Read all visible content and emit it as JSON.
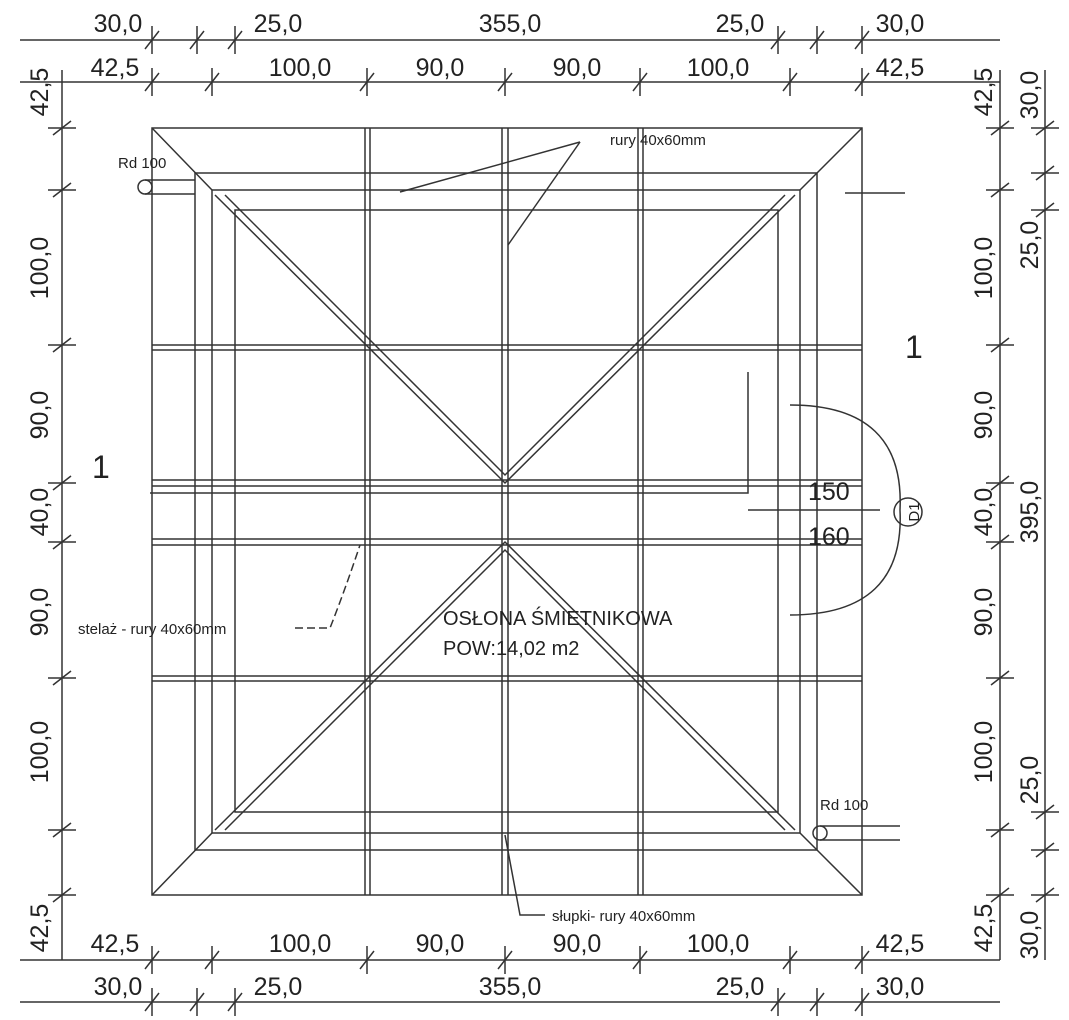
{
  "dimensions": {
    "top_outer": [
      "30,0",
      "25,0",
      "355,0",
      "25,0",
      "30,0"
    ],
    "top_inner": [
      "42,5",
      "100,0",
      "90,0",
      "90,0",
      "100,0",
      "42,5"
    ],
    "bottom_inner": [
      "42,5",
      "100,0",
      "90,0",
      "90,0",
      "100,0",
      "42,5"
    ],
    "bottom_outer": [
      "30,0",
      "25,0",
      "355,0",
      "25,0",
      "30,0"
    ],
    "left": [
      "42,5",
      "100,0",
      "90,0",
      "40,0",
      "90,0",
      "100,0",
      "42,5"
    ],
    "right_inner": [
      "42,5",
      "100,0",
      "90,0",
      "40,0",
      "90,0",
      "100,0",
      "42,5"
    ],
    "right_outer": [
      "30,0",
      "25,0",
      "395,0",
      "25,0",
      "30,0"
    ]
  },
  "labels": {
    "pipes_top": "rury 40x60mm",
    "rd_top": "Rd 100",
    "rd_bottom": "Rd 100",
    "section_right": "1",
    "section_left": "1",
    "h150": "150",
    "h160": "160",
    "door": "D1",
    "frame": "stelaż - rury 40x60mm",
    "title": "OSŁONA ŚMIETNIKOWA",
    "area": "POW:14,02 m2",
    "posts": "słupki- rury 40x60mm"
  }
}
